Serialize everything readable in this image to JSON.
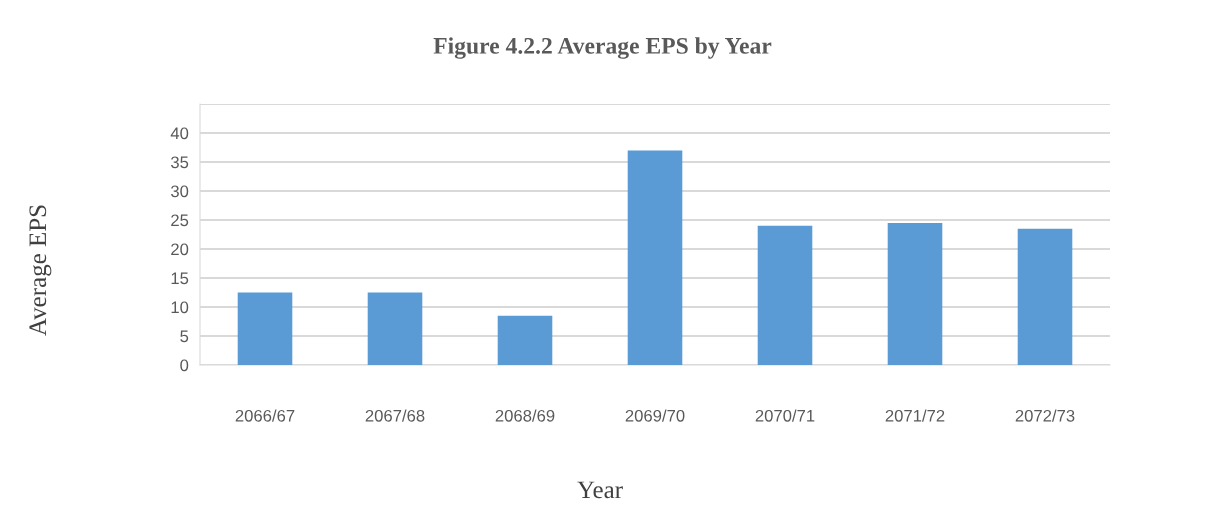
{
  "chart_data": {
    "type": "bar",
    "title": "Figure 4.2.2 Average EPS by Year",
    "xlabel": "Year",
    "ylabel": "Average EPS",
    "categories": [
      "2066/67",
      "2067/68",
      "2068/69",
      "2069/70",
      "2070/71",
      "2071/72",
      "2072/73"
    ],
    "values": [
      12.5,
      12.5,
      8.5,
      37,
      24,
      24.5,
      23.5
    ],
    "color": "#5b9bd5",
    "ylim": [
      0,
      45
    ],
    "yticks": [
      0,
      5,
      10,
      15,
      20,
      25,
      30,
      35,
      40,
      {
        "value": 45,
        "label": null
      }
    ],
    "grid": "y",
    "legend": false
  }
}
